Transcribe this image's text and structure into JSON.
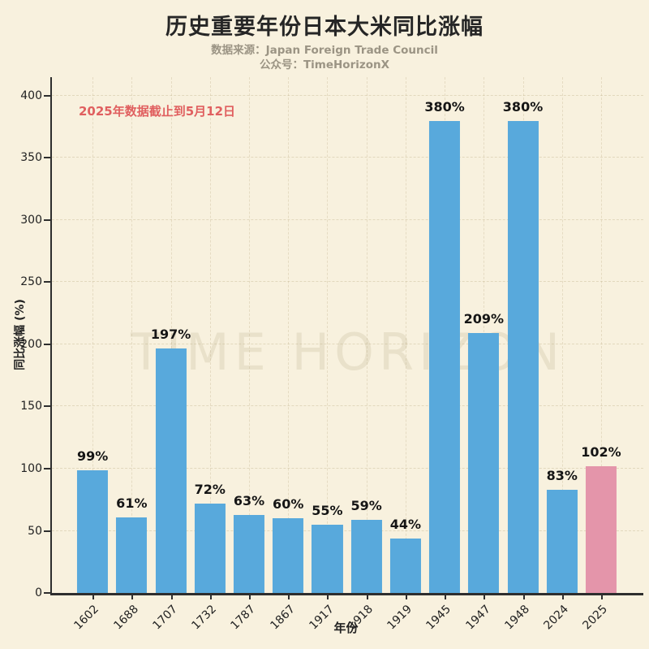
{
  "page": {
    "background_color": "#f8f1de",
    "watermark": "TIME HORIZON"
  },
  "header": {
    "title": "历史重要年份日本大米同比涨幅",
    "subtitle_source": "数据来源：Japan Foreign Trade Council",
    "subtitle_account": "公众号：TimeHorizonX"
  },
  "annotation": {
    "text": "2025年数据截止到5月12日",
    "color": "#e05f5f"
  },
  "chart_data": {
    "type": "bar",
    "title": "历史重要年份日本大米同比涨幅",
    "categories": [
      "1602",
      "1688",
      "1707",
      "1732",
      "1787",
      "1867",
      "1917",
      "1918",
      "1919",
      "1945",
      "1947",
      "1948",
      "2024",
      "2025"
    ],
    "values": [
      99,
      61,
      197,
      72,
      63,
      60,
      55,
      59,
      44,
      380,
      209,
      380,
      83,
      102
    ],
    "bar_labels": [
      "99%",
      "61%",
      "197%",
      "72%",
      "63%",
      "60%",
      "55%",
      "59%",
      "44%",
      "380%",
      "209%",
      "380%",
      "83%",
      "102%"
    ],
    "xlabel": "年份",
    "ylabel": "同比涨幅 (%)",
    "yticks": [
      0,
      50,
      100,
      150,
      200,
      250,
      300,
      350,
      400
    ],
    "ylim": [
      0,
      415
    ],
    "grid": true,
    "legend": "none",
    "bar_color_default": "#58a9dc",
    "bar_color_highlight": "#e495aa",
    "highlight_index": 13,
    "axis_color": "#2e2e2e"
  }
}
